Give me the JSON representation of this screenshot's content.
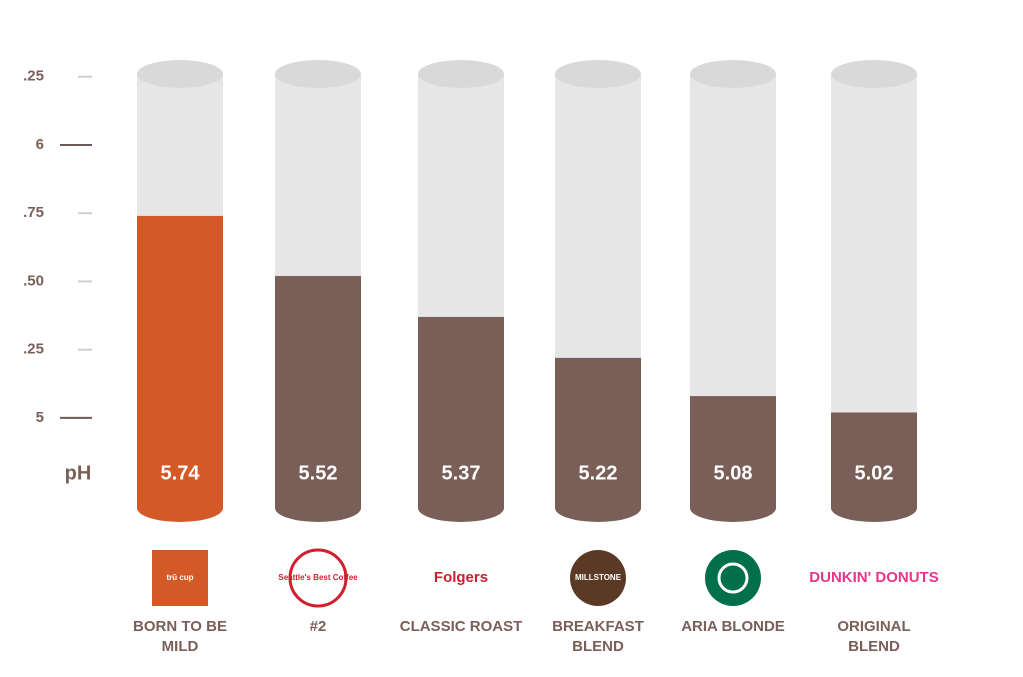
{
  "chart_data": {
    "type": "cylinder-bar",
    "ylabel": "pH",
    "categories": [
      [
        "BORN TO BE",
        "MILD"
      ],
      [
        "#2"
      ],
      [
        "CLASSIC ROAST"
      ],
      [
        "BREAKFAST",
        "BLEND"
      ],
      [
        "ARIA BLONDE"
      ],
      [
        "ORIGINAL",
        "BLEND"
      ]
    ],
    "brands": [
      "trū cup",
      "Seattle's Best Coffee",
      "Folgers",
      "MILLSTONE",
      null,
      "DUNKIN' DONUTS"
    ],
    "values": [
      5.74,
      5.52,
      5.37,
      5.22,
      5.08,
      5.02
    ],
    "colors": [
      "#d35a27",
      "#7a5f58",
      "#7a5f58",
      "#7a5f58",
      "#7a5f58",
      "#7a5f58"
    ],
    "ylim": [
      4.67,
      6.26
    ],
    "yticks": [
      {
        "value": 6.25,
        "label": ".25"
      },
      6,
      {
        "value": 5.75,
        "label": ".75"
      },
      {
        "value": 5.5,
        "label": ".50"
      },
      {
        "value": 5.25,
        "label": ".25"
      },
      5
    ]
  }
}
